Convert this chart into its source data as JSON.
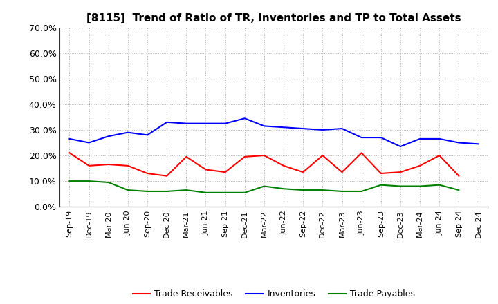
{
  "title": "[8115]  Trend of Ratio of TR, Inventories and TP to Total Assets",
  "x_labels": [
    "Sep-19",
    "Dec-19",
    "Mar-20",
    "Jun-20",
    "Sep-20",
    "Dec-20",
    "Mar-21",
    "Jun-21",
    "Sep-21",
    "Dec-21",
    "Mar-22",
    "Jun-22",
    "Sep-22",
    "Dec-22",
    "Mar-23",
    "Jun-23",
    "Sep-23",
    "Dec-23",
    "Mar-24",
    "Jun-24",
    "Sep-24",
    "Dec-24"
  ],
  "trade_receivables": [
    21.0,
    16.0,
    16.5,
    16.0,
    13.0,
    12.0,
    19.5,
    14.5,
    13.5,
    19.5,
    20.0,
    16.0,
    13.5,
    20.0,
    13.5,
    21.0,
    13.0,
    13.5,
    16.0,
    20.0,
    12.0,
    null
  ],
  "inventories": [
    26.5,
    25.0,
    27.5,
    29.0,
    28.0,
    33.0,
    32.5,
    32.5,
    32.5,
    34.5,
    31.5,
    31.0,
    30.5,
    30.0,
    30.5,
    27.0,
    27.0,
    23.5,
    26.5,
    26.5,
    25.0,
    24.5
  ],
  "trade_payables": [
    10.0,
    10.0,
    9.5,
    6.5,
    6.0,
    6.0,
    6.5,
    5.5,
    5.5,
    5.5,
    8.0,
    7.0,
    6.5,
    6.5,
    6.0,
    6.0,
    8.5,
    8.0,
    8.0,
    8.5,
    6.5,
    null
  ],
  "trade_receivables_color": "#ff0000",
  "inventories_color": "#0000ff",
  "trade_payables_color": "#008000",
  "ylim": [
    0,
    70
  ],
  "yticks": [
    0,
    10,
    20,
    30,
    40,
    50,
    60,
    70
  ],
  "background_color": "#ffffff",
  "grid_color": "#999999",
  "title_fontsize": 11,
  "axis_fontsize": 9,
  "xtick_fontsize": 8,
  "ytick_fontsize": 9,
  "legend_fontsize": 9,
  "linewidth": 1.5
}
